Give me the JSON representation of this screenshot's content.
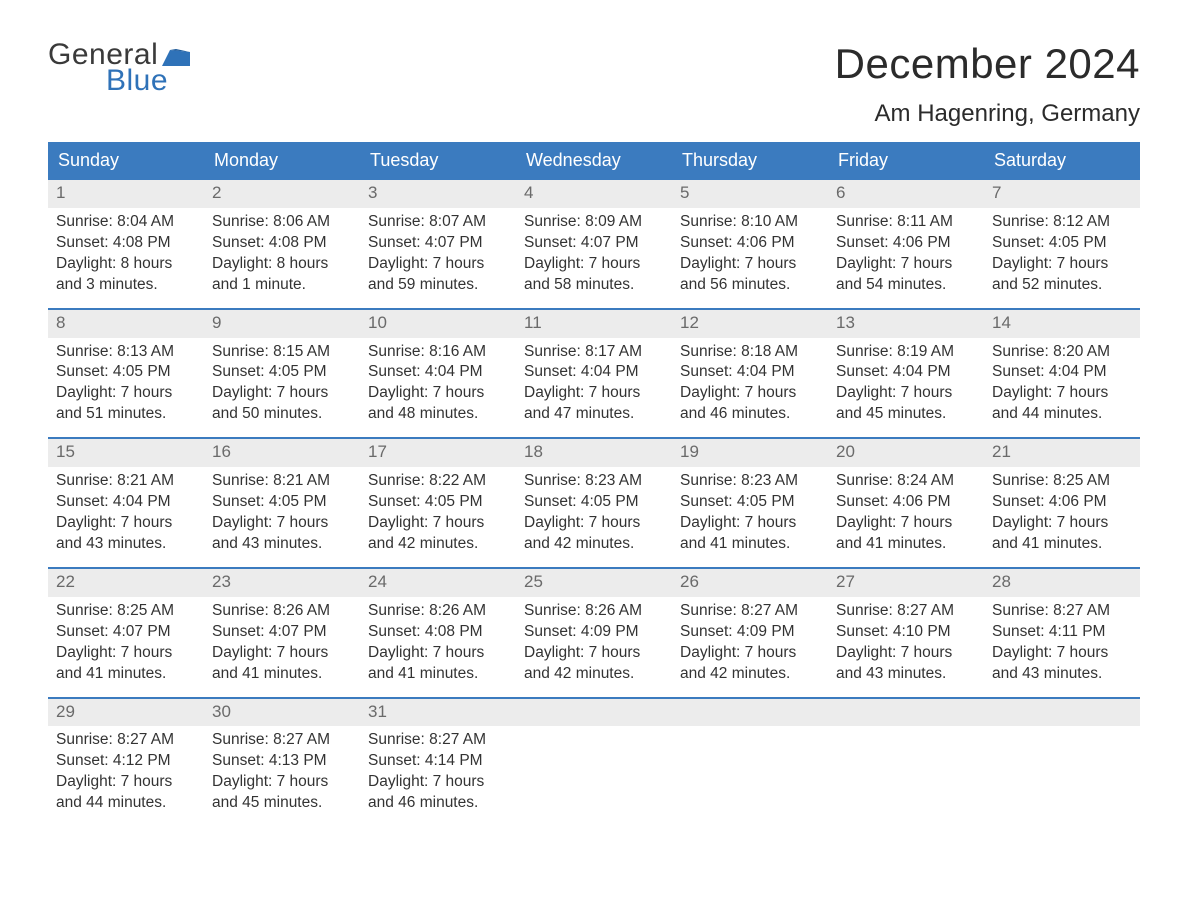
{
  "logo": {
    "general": "General",
    "blue": "Blue"
  },
  "title": "December 2024",
  "location": "Am Hagenring, Germany",
  "colors": {
    "header_bg": "#3b7bbf",
    "header_text": "#ffffff",
    "daynum_bg": "#ececec",
    "daynum_text": "#6a6a6a",
    "body_text": "#333333",
    "week_border": "#3b7bbf",
    "logo_blue": "#2f72b8",
    "logo_dark": "#3a3a3a",
    "page_bg": "#ffffff"
  },
  "days_of_week": [
    "Sunday",
    "Monday",
    "Tuesday",
    "Wednesday",
    "Thursday",
    "Friday",
    "Saturday"
  ],
  "labels": {
    "sunrise": "Sunrise:",
    "sunset": "Sunset:",
    "daylight": "Daylight:"
  },
  "weeks": [
    [
      {
        "n": "1",
        "sunrise": "8:04 AM",
        "sunset": "4:08 PM",
        "daylight": "8 hours and 3 minutes."
      },
      {
        "n": "2",
        "sunrise": "8:06 AM",
        "sunset": "4:08 PM",
        "daylight": "8 hours and 1 minute."
      },
      {
        "n": "3",
        "sunrise": "8:07 AM",
        "sunset": "4:07 PM",
        "daylight": "7 hours and 59 minutes."
      },
      {
        "n": "4",
        "sunrise": "8:09 AM",
        "sunset": "4:07 PM",
        "daylight": "7 hours and 58 minutes."
      },
      {
        "n": "5",
        "sunrise": "8:10 AM",
        "sunset": "4:06 PM",
        "daylight": "7 hours and 56 minutes."
      },
      {
        "n": "6",
        "sunrise": "8:11 AM",
        "sunset": "4:06 PM",
        "daylight": "7 hours and 54 minutes."
      },
      {
        "n": "7",
        "sunrise": "8:12 AM",
        "sunset": "4:05 PM",
        "daylight": "7 hours and 52 minutes."
      }
    ],
    [
      {
        "n": "8",
        "sunrise": "8:13 AM",
        "sunset": "4:05 PM",
        "daylight": "7 hours and 51 minutes."
      },
      {
        "n": "9",
        "sunrise": "8:15 AM",
        "sunset": "4:05 PM",
        "daylight": "7 hours and 50 minutes."
      },
      {
        "n": "10",
        "sunrise": "8:16 AM",
        "sunset": "4:04 PM",
        "daylight": "7 hours and 48 minutes."
      },
      {
        "n": "11",
        "sunrise": "8:17 AM",
        "sunset": "4:04 PM",
        "daylight": "7 hours and 47 minutes."
      },
      {
        "n": "12",
        "sunrise": "8:18 AM",
        "sunset": "4:04 PM",
        "daylight": "7 hours and 46 minutes."
      },
      {
        "n": "13",
        "sunrise": "8:19 AM",
        "sunset": "4:04 PM",
        "daylight": "7 hours and 45 minutes."
      },
      {
        "n": "14",
        "sunrise": "8:20 AM",
        "sunset": "4:04 PM",
        "daylight": "7 hours and 44 minutes."
      }
    ],
    [
      {
        "n": "15",
        "sunrise": "8:21 AM",
        "sunset": "4:04 PM",
        "daylight": "7 hours and 43 minutes."
      },
      {
        "n": "16",
        "sunrise": "8:21 AM",
        "sunset": "4:05 PM",
        "daylight": "7 hours and 43 minutes."
      },
      {
        "n": "17",
        "sunrise": "8:22 AM",
        "sunset": "4:05 PM",
        "daylight": "7 hours and 42 minutes."
      },
      {
        "n": "18",
        "sunrise": "8:23 AM",
        "sunset": "4:05 PM",
        "daylight": "7 hours and 42 minutes."
      },
      {
        "n": "19",
        "sunrise": "8:23 AM",
        "sunset": "4:05 PM",
        "daylight": "7 hours and 41 minutes."
      },
      {
        "n": "20",
        "sunrise": "8:24 AM",
        "sunset": "4:06 PM",
        "daylight": "7 hours and 41 minutes."
      },
      {
        "n": "21",
        "sunrise": "8:25 AM",
        "sunset": "4:06 PM",
        "daylight": "7 hours and 41 minutes."
      }
    ],
    [
      {
        "n": "22",
        "sunrise": "8:25 AM",
        "sunset": "4:07 PM",
        "daylight": "7 hours and 41 minutes."
      },
      {
        "n": "23",
        "sunrise": "8:26 AM",
        "sunset": "4:07 PM",
        "daylight": "7 hours and 41 minutes."
      },
      {
        "n": "24",
        "sunrise": "8:26 AM",
        "sunset": "4:08 PM",
        "daylight": "7 hours and 41 minutes."
      },
      {
        "n": "25",
        "sunrise": "8:26 AM",
        "sunset": "4:09 PM",
        "daylight": "7 hours and 42 minutes."
      },
      {
        "n": "26",
        "sunrise": "8:27 AM",
        "sunset": "4:09 PM",
        "daylight": "7 hours and 42 minutes."
      },
      {
        "n": "27",
        "sunrise": "8:27 AM",
        "sunset": "4:10 PM",
        "daylight": "7 hours and 43 minutes."
      },
      {
        "n": "28",
        "sunrise": "8:27 AM",
        "sunset": "4:11 PM",
        "daylight": "7 hours and 43 minutes."
      }
    ],
    [
      {
        "n": "29",
        "sunrise": "8:27 AM",
        "sunset": "4:12 PM",
        "daylight": "7 hours and 44 minutes."
      },
      {
        "n": "30",
        "sunrise": "8:27 AM",
        "sunset": "4:13 PM",
        "daylight": "7 hours and 45 minutes."
      },
      {
        "n": "31",
        "sunrise": "8:27 AM",
        "sunset": "4:14 PM",
        "daylight": "7 hours and 46 minutes."
      },
      {
        "empty": true
      },
      {
        "empty": true
      },
      {
        "empty": true
      },
      {
        "empty": true
      }
    ]
  ]
}
